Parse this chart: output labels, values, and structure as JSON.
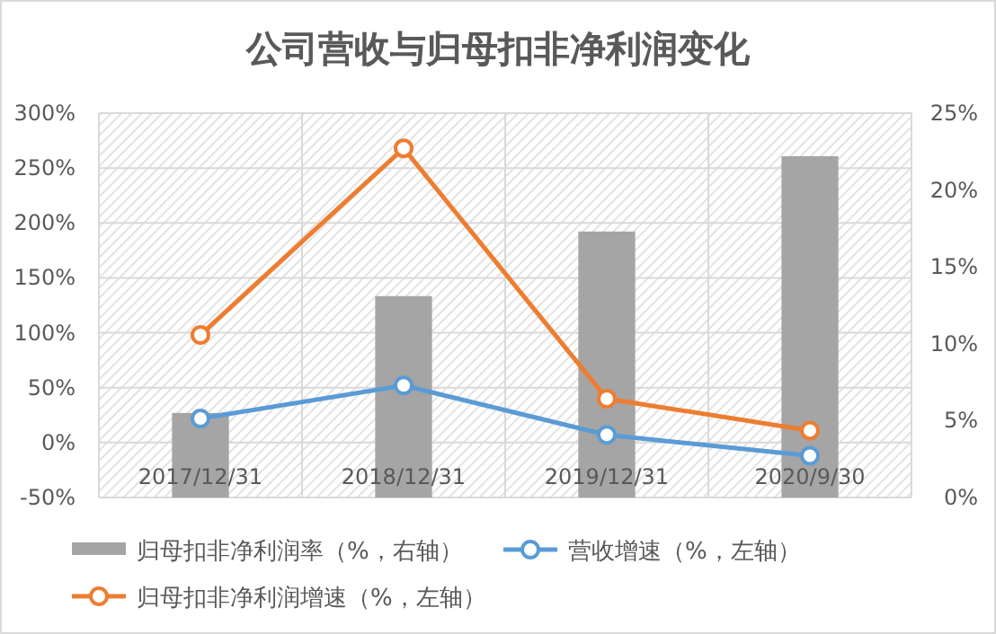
{
  "chart_data": {
    "type": "bar",
    "title": "公司营收与归母扣非净利润变化",
    "categories": [
      "2017/12/31",
      "2018/12/31",
      "2019/12/31",
      "2020/9/30"
    ],
    "series": [
      {
        "name": "归母扣非净利润率（%，右轴）",
        "axis": "y2",
        "color": "#a5a5a5",
        "values": [
          5.5,
          13.1,
          17.3,
          22.2
        ]
      },
      {
        "name": "营收增速（%，左轴）",
        "type": "line",
        "color": "#5b9bd5",
        "values": [
          22,
          52,
          7,
          -12
        ]
      },
      {
        "name": "归母扣非净利润增速（%，左轴）",
        "type": "line",
        "color": "#ed7d31",
        "values": [
          98,
          268,
          40,
          11
        ]
      }
    ],
    "ylim": [
      -50,
      300
    ],
    "yticks": [
      {
        "value": -50,
        "label": "-50%"
      },
      {
        "value": 0,
        "label": "0%"
      },
      {
        "value": 50,
        "label": "50%"
      },
      {
        "value": 100,
        "label": "100%"
      },
      {
        "value": 150,
        "label": "150%"
      },
      {
        "value": 200,
        "label": "200%"
      },
      {
        "value": 250,
        "label": "250%"
      },
      {
        "value": 300,
        "label": "300%"
      }
    ],
    "y2lim": [
      0,
      25
    ],
    "y2ticks": [
      {
        "value": 0,
        "label": "0%"
      },
      {
        "value": 5,
        "label": "5%"
      },
      {
        "value": 10,
        "label": "10%"
      },
      {
        "value": 15,
        "label": "15%"
      },
      {
        "value": 20,
        "label": "20%"
      },
      {
        "value": 25,
        "label": "25%"
      }
    ],
    "grid": true,
    "legend": "bottom",
    "marker": "circle"
  }
}
